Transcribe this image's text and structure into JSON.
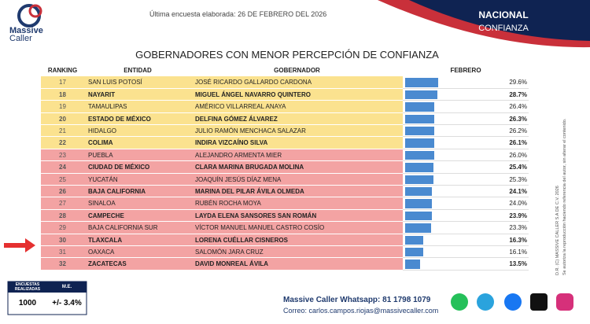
{
  "header": {
    "survey_date": "Última encuesta elaborada: 26 DE FEBRERO DEL 2026",
    "scope": "NACIONAL",
    "topic": "CONFIANZA",
    "logo_line1": "Massive",
    "logo_line2": "Caller"
  },
  "title": "GOBERNADORES CON MENOR PERCEPCIÓN DE CONFIANZA",
  "table": {
    "columns": [
      "RANKING",
      "ENTIDAD",
      "GOBERNADOR",
      "FEBRERO"
    ],
    "rows": [
      {
        "ranking": 17,
        "entidad": "SAN LUIS POTOSÍ",
        "gobernador": "JOSÉ RICARDO GALLARDO CARDONA",
        "value": 29.6,
        "value_label": "29.6%",
        "bold": false,
        "color": "#fbe28f"
      },
      {
        "ranking": 18,
        "entidad": "NAYARIT",
        "gobernador": "MIGUEL ÁNGEL NAVARRO QUINTERO",
        "value": 28.7,
        "value_label": "28.7%",
        "bold": true,
        "color": "#fbe28f"
      },
      {
        "ranking": 19,
        "entidad": "TAMAULIPAS",
        "gobernador": "AMÉRICO VILLARREAL ANAYA",
        "value": 26.4,
        "value_label": "26.4%",
        "bold": false,
        "color": "#fbe28f"
      },
      {
        "ranking": 20,
        "entidad": "ESTADO DE MÉXICO",
        "gobernador": "DELFINA GÓMEZ ÁLVAREZ",
        "value": 26.3,
        "value_label": "26.3%",
        "bold": true,
        "color": "#fbe28f"
      },
      {
        "ranking": 21,
        "entidad": "HIDALGO",
        "gobernador": "JULIO RAMÓN MENCHACA SALAZAR",
        "value": 26.2,
        "value_label": "26.2%",
        "bold": false,
        "color": "#fbe28f"
      },
      {
        "ranking": 22,
        "entidad": "COLIMA",
        "gobernador": "INDIRA VIZCAÍNO SILVA",
        "value": 26.1,
        "value_label": "26.1%",
        "bold": true,
        "color": "#fbe28f"
      },
      {
        "ranking": 23,
        "entidad": "PUEBLA",
        "gobernador": "ALEJANDRO ARMENTA MIER",
        "value": 26.0,
        "value_label": "26.0%",
        "bold": false,
        "color": "#f3a3a3"
      },
      {
        "ranking": 24,
        "entidad": "CIUDAD DE MÉXICO",
        "gobernador": "CLARA MARINA BRUGADA MOLINA",
        "value": 25.4,
        "value_label": "25.4%",
        "bold": true,
        "color": "#f3a3a3"
      },
      {
        "ranking": 25,
        "entidad": "YUCATÁN",
        "gobernador": "JOAQUÍN JESÚS DÍAZ MENA",
        "value": 25.3,
        "value_label": "25.3%",
        "bold": false,
        "color": "#f3a3a3"
      },
      {
        "ranking": 26,
        "entidad": "BAJA CALIFORNIA",
        "gobernador": "MARINA DEL PILAR ÁVILA OLMEDA",
        "value": 24.1,
        "value_label": "24.1%",
        "bold": true,
        "color": "#f3a3a3"
      },
      {
        "ranking": 27,
        "entidad": "SINALOA",
        "gobernador": "RUBÉN ROCHA MOYA",
        "value": 24.0,
        "value_label": "24.0%",
        "bold": false,
        "color": "#f3a3a3"
      },
      {
        "ranking": 28,
        "entidad": "CAMPECHE",
        "gobernador": "LAYDA ELENA SANSORES SAN ROMÁN",
        "value": 23.9,
        "value_label": "23.9%",
        "bold": true,
        "color": "#f3a3a3"
      },
      {
        "ranking": 29,
        "entidad": "BAJA CALIFORNIA SUR",
        "gobernador": "VÍCTOR MANUEL MANUEL CASTRO COSÍO",
        "value": 23.3,
        "value_label": "23.3%",
        "bold": false,
        "color": "#f3a3a3"
      },
      {
        "ranking": 30,
        "entidad": "TLAXCALA",
        "gobernador": "LORENA CUÉLLAR CISNEROS",
        "value": 16.3,
        "value_label": "16.3%",
        "bold": true,
        "color": "#f3a3a3"
      },
      {
        "ranking": 31,
        "entidad": "OAXACA",
        "gobernador": "SALOMÓN JARA CRUZ",
        "value": 16.1,
        "value_label": "16.1%",
        "bold": false,
        "color": "#f3a3a3"
      },
      {
        "ranking": 32,
        "entidad": "ZACATECAS",
        "gobernador": "DAVID MONREAL ÁVILA",
        "value": 13.5,
        "value_label": "13.5%",
        "bold": true,
        "color": "#f3a3a3"
      }
    ],
    "bar_color": "#4a8ad0"
  },
  "side": {
    "line1": "D.R. (C) MASSIVE CALLER S.A DE C.V. 2026",
    "line2": "Se autoriza la reproducción haciendo referencia del autor, sin alterar el contenido."
  },
  "footer": {
    "surveys_label": "ENCUESTAS REALIZADAS",
    "me_label": "M.E.",
    "surveys": "1000",
    "me": "+/- 3.4%",
    "whatsapp": "Massive Caller Whatsapp: 81 1798 1079",
    "email": "Correo: carlos.campos.riojas@massivecaller.com"
  }
}
